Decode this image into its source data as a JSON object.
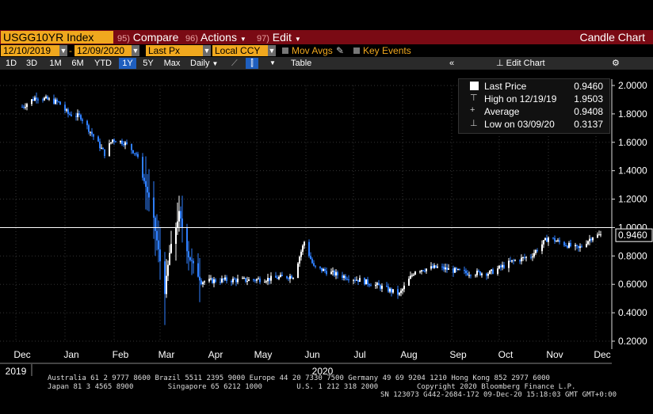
{
  "toolbar": {
    "ticker": "USGG10YR Index",
    "compare_num": "95)",
    "compare_label": "Compare",
    "actions_num": "96)",
    "actions_label": "Actions",
    "edit_num": "97)",
    "edit_label": "Edit",
    "chart_type": "Candle Chart"
  },
  "settings": {
    "start_date": "12/10/2019",
    "end_date": "12/09/2020",
    "price_field": "Last Px",
    "currency": "Local CCY",
    "mov_avgs_label": "Mov Avgs",
    "key_events_label": "Key Events"
  },
  "ranges": {
    "items": [
      "1D",
      "3D",
      "1M",
      "6M",
      "YTD",
      "1Y",
      "5Y",
      "Max"
    ],
    "selected": "1Y",
    "frequency": "Daily",
    "table_label": "Table",
    "edit_chart_label": "Edit Chart"
  },
  "legend": {
    "last_price_label": "Last Price",
    "last_price_value": "0.9460",
    "high_label": "High on 12/19/19",
    "high_value": "1.9503",
    "average_label": "Average",
    "average_value": "0.9408",
    "low_label": "Low on 03/09/20",
    "low_value": "0.3137"
  },
  "last_price_tag": "0.9460",
  "footer": {
    "line1": "Australia 61 2 9777 8600 Brazil 5511 2395 9000 Europe 44 20 7330 7500 Germany 49 69 9204 1210 Hong Kong 852 2977 6000",
    "line2": "Japan 81 3 4565 8900        Singapore 65 6212 1000        U.S. 1 212 318 2000         Copyright 2020 Bloomberg Finance L.P.",
    "line3": "SN 123073 G442-2684-172 09-Dec-20 15:18:03 GMT GMT+0:00"
  },
  "colors": {
    "accent": "#f0a81e",
    "bar": "#7a0a14",
    "up": "#ffffff",
    "down": "#2f7fff"
  },
  "chart_data": {
    "type": "candlestick",
    "x_tick_labels": [
      "Dec",
      "Jan",
      "Feb",
      "Mar",
      "Apr",
      "May",
      "Jun",
      "Jul",
      "Aug",
      "Sep",
      "Oct",
      "Nov",
      "Dec"
    ],
    "x_tick_dates": [
      "2019-12-01",
      "2020-01-01",
      "2020-02-01",
      "2020-03-01",
      "2020-04-01",
      "2020-05-01",
      "2020-06-01",
      "2020-07-01",
      "2020-08-01",
      "2020-09-01",
      "2020-10-01",
      "2020-11-01",
      "2020-12-01"
    ],
    "year_labels": [
      "2019",
      "2020"
    ],
    "y_ticks": [
      "2.0000",
      "1.8000",
      "1.6000",
      "1.4000",
      "1.2000",
      "1.0000",
      "0.8000",
      "0.6000",
      "0.4000",
      "0.2000"
    ],
    "ylim": [
      0.2,
      2.0
    ],
    "reference_line": 1.0,
    "last_price": 0.946,
    "series": [
      {
        "dates": [
          "2019-12-10",
          "2019-12-19",
          "2020-01-02",
          "2020-01-08",
          "2020-01-16",
          "2020-01-31",
          "2020-02-05",
          "2020-02-12",
          "2020-02-20",
          "2020-02-27",
          "2020-03-02",
          "2020-03-09",
          "2020-03-12",
          "2020-03-18",
          "2020-03-24",
          "2020-04-01",
          "2020-04-15",
          "2020-04-30",
          "2020-05-15",
          "2020-05-29",
          "2020-06-05",
          "2020-06-11",
          "2020-06-25",
          "2020-07-10",
          "2020-07-24",
          "2020-08-04",
          "2020-08-14",
          "2020-08-28",
          "2020-09-15",
          "2020-09-30",
          "2020-10-14",
          "2020-10-26",
          "2020-11-06",
          "2020-11-12",
          "2020-11-25",
          "2020-12-04",
          "2020-12-09"
        ],
        "values": [
          1.85,
          1.92,
          1.88,
          1.8,
          1.78,
          1.52,
          1.62,
          1.6,
          1.52,
          1.25,
          1.05,
          0.55,
          0.82,
          1.1,
          0.8,
          0.62,
          0.63,
          0.63,
          0.64,
          0.66,
          0.9,
          0.72,
          0.67,
          0.63,
          0.58,
          0.53,
          0.7,
          0.72,
          0.68,
          0.68,
          0.76,
          0.8,
          0.93,
          0.9,
          0.85,
          0.94,
          0.946
        ]
      }
    ]
  }
}
